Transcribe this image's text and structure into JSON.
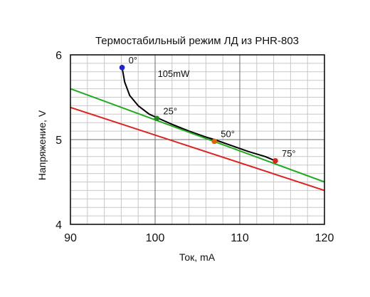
{
  "chart_data": {
    "type": "line",
    "title": "Термостабильный режим ЛД из PHR-803",
    "xlabel": "Ток, mA",
    "ylabel": "Напряжение, V",
    "xlim": [
      90,
      120
    ],
    "ylim": [
      4,
      6
    ],
    "x_ticks": [
      "90",
      "100",
      "110",
      "120"
    ],
    "y_ticks": [
      "4",
      "5",
      "6"
    ],
    "x_minor_step": 2,
    "y_minor_step": 0.1,
    "grid": true,
    "legend": "none",
    "series": [
      {
        "color": "#000000",
        "points": [
          [
            96.1,
            5.85
          ],
          [
            96.4,
            5.68
          ],
          [
            97.0,
            5.52
          ],
          [
            98.0,
            5.4
          ],
          [
            99.3,
            5.3
          ],
          [
            100.2,
            5.26
          ],
          [
            102.0,
            5.18
          ],
          [
            104.0,
            5.1
          ],
          [
            106.0,
            5.03
          ],
          [
            107.0,
            5.0
          ],
          [
            109.0,
            4.93
          ],
          [
            111.0,
            4.86
          ],
          [
            113.0,
            4.8
          ],
          [
            114.2,
            4.75
          ]
        ]
      },
      {
        "color": "#22aa22",
        "points": [
          [
            90,
            5.6
          ],
          [
            120,
            4.5
          ]
        ]
      },
      {
        "color": "#dd2222",
        "points": [
          [
            90,
            5.38
          ],
          [
            120,
            4.4
          ]
        ]
      }
    ],
    "markers": [
      {
        "label": "0°",
        "x": 96.1,
        "y": 5.85,
        "color": "#2222cc"
      },
      {
        "label": "25°",
        "x": 100.2,
        "y": 5.25,
        "color": "#228822"
      },
      {
        "label": "50°",
        "x": 107.0,
        "y": 4.98,
        "color": "#dd6600"
      },
      {
        "label": "75°",
        "x": 114.2,
        "y": 4.75,
        "color": "#dd2222"
      }
    ],
    "annotations": [
      {
        "text": "105mW",
        "x": 100.3,
        "y": 5.74
      }
    ]
  }
}
